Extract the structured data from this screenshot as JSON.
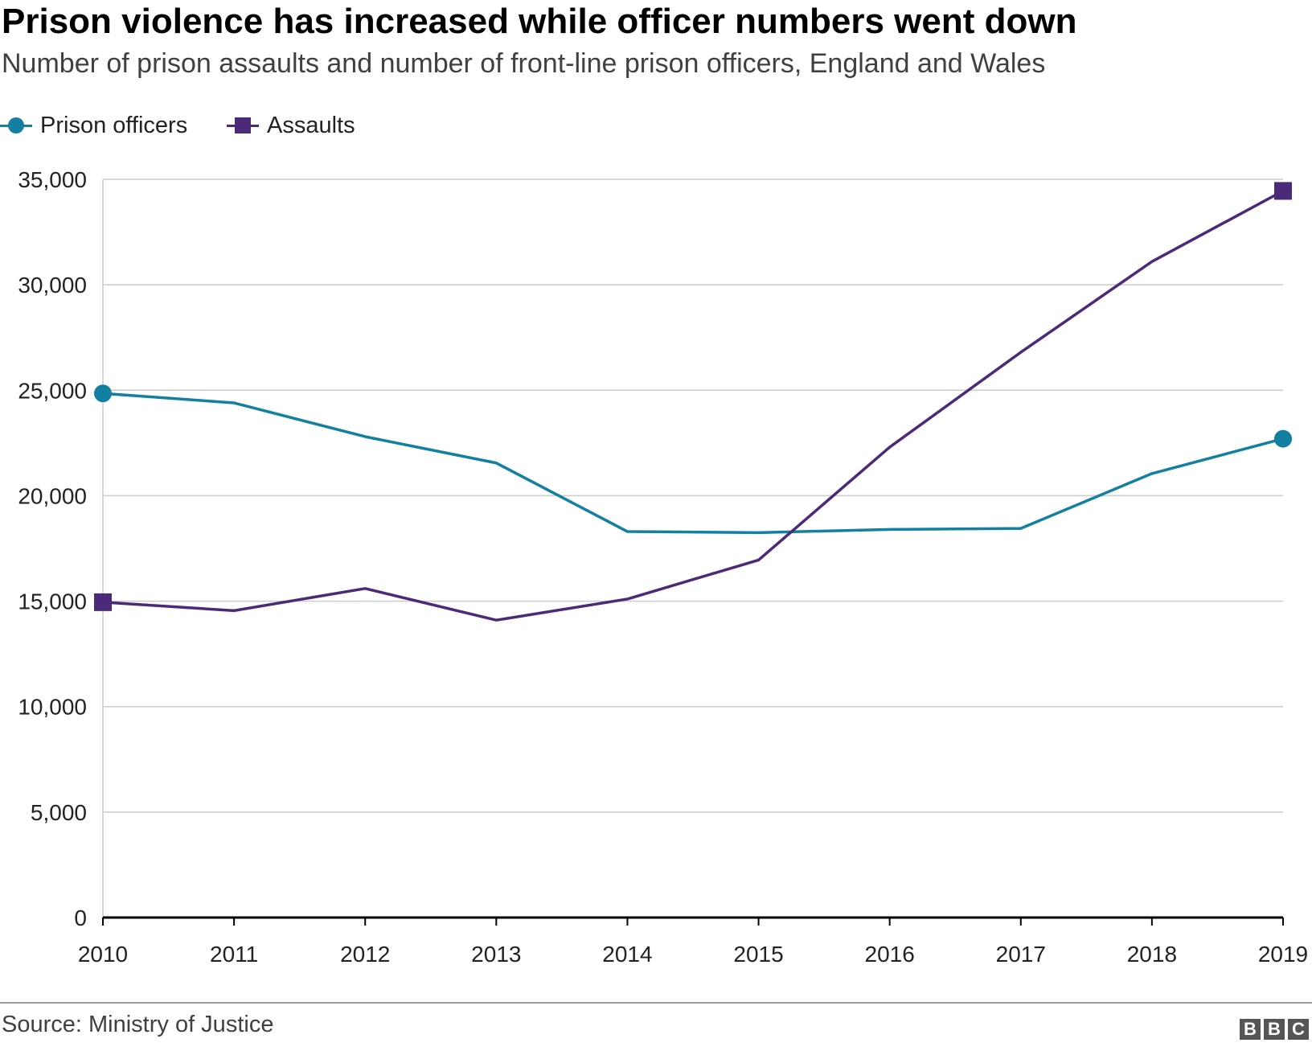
{
  "header": {
    "title": "Prison violence has increased while officer numbers went down",
    "subtitle": "Number of prison assaults and number of front-line prison officers, England and Wales"
  },
  "legend": {
    "officers_label": "Prison officers",
    "assaults_label": "Assaults"
  },
  "colors": {
    "officers": "#1380A1",
    "assaults": "#4B2A78",
    "grid": "#cccccc",
    "axis": "#000000"
  },
  "footer": {
    "source": "Source: Ministry of Justice",
    "logo_letters": [
      "B",
      "B",
      "C"
    ]
  },
  "chart_data": {
    "type": "line",
    "title": "Prison violence has increased while officer numbers went down",
    "xlabel": "",
    "ylabel": "",
    "ylim": [
      0,
      35000
    ],
    "grid": true,
    "legend_position": "top-left",
    "categories": [
      "2010",
      "2011",
      "2012",
      "2013",
      "2014",
      "2015",
      "2016",
      "2017",
      "2018",
      "2019"
    ],
    "y_ticks": [
      0,
      5000,
      10000,
      15000,
      20000,
      25000,
      30000,
      35000
    ],
    "y_tick_labels": [
      "0",
      "5,000",
      "10,000",
      "15,000",
      "20,000",
      "25,000",
      "30,000",
      "35,000"
    ],
    "series": [
      {
        "name": "Prison officers",
        "marker": "circle",
        "values": [
          24850,
          24400,
          22800,
          21550,
          18300,
          18250,
          18400,
          18450,
          21050,
          22700
        ]
      },
      {
        "name": "Assaults",
        "marker": "square",
        "values": [
          14950,
          14550,
          15600,
          14100,
          15100,
          16950,
          22300,
          26800,
          31100,
          34450
        ]
      }
    ]
  }
}
